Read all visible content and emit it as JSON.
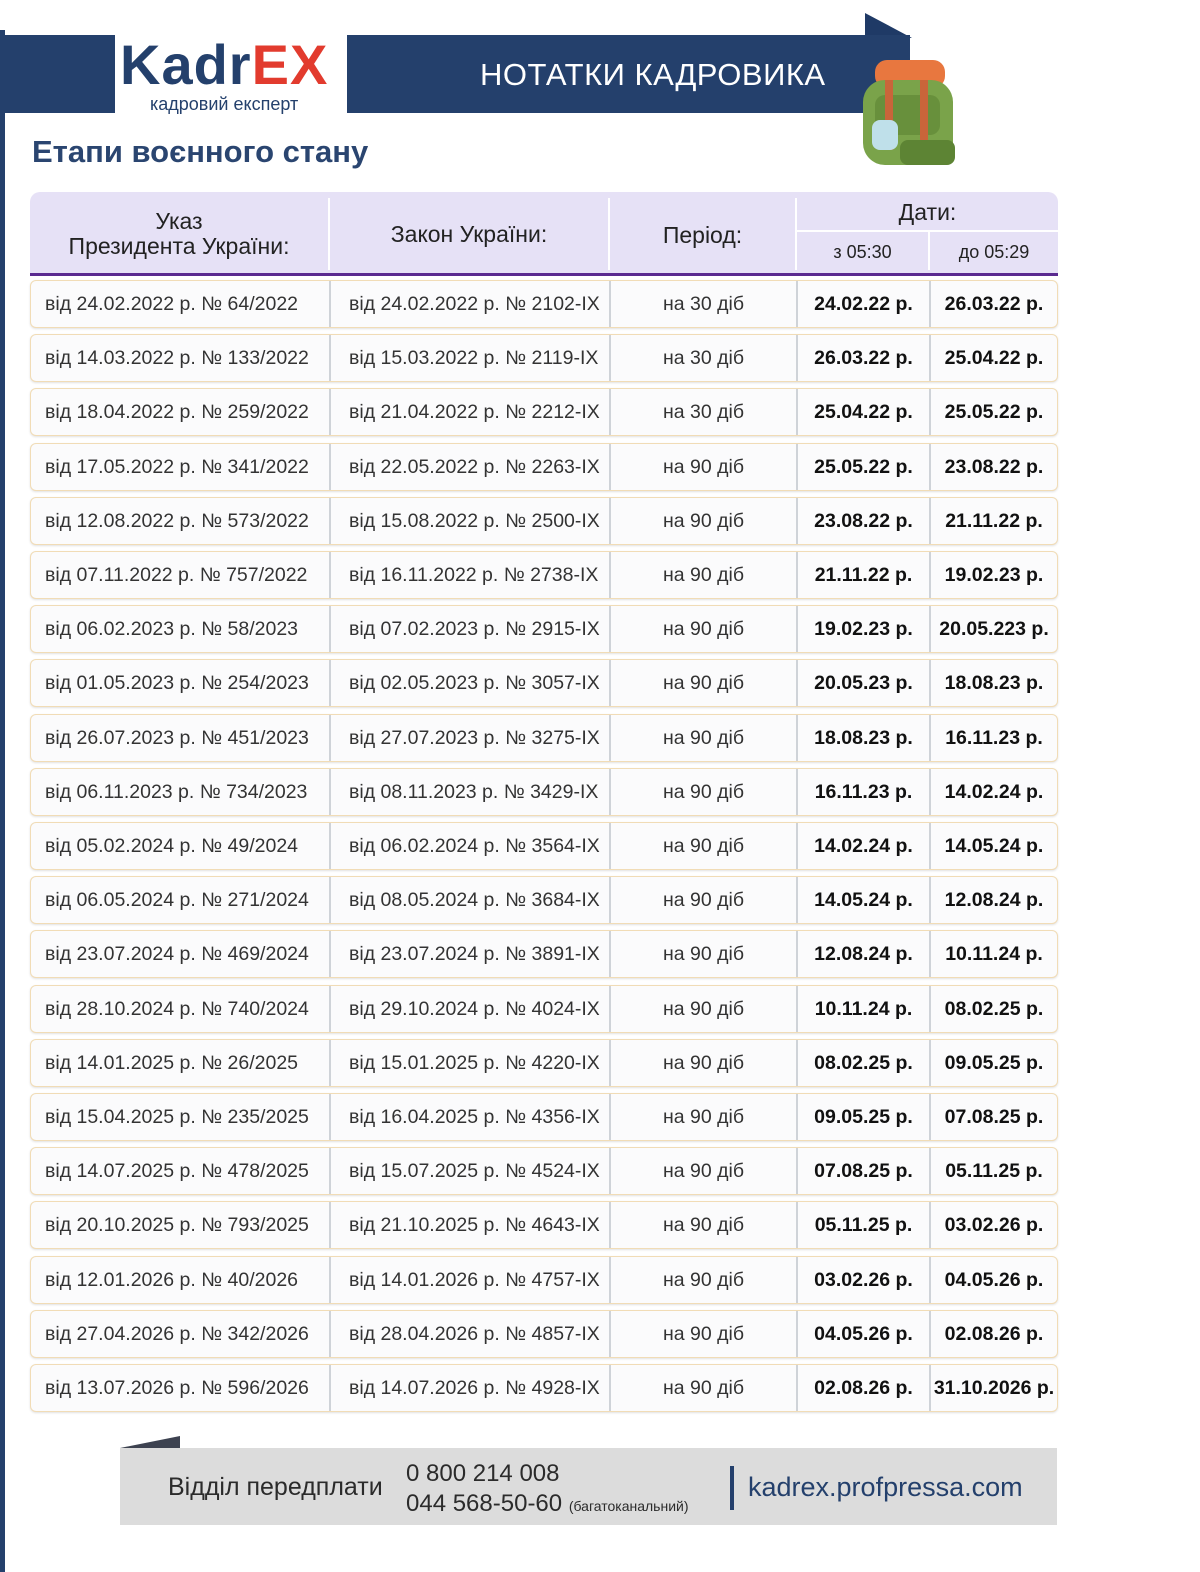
{
  "header": {
    "logo_main": "Kadr",
    "logo_accent": "EX",
    "logo_tagline": "кадровий експерт",
    "banner": "НОТАТКИ КАДРОВИКА"
  },
  "title": "Етапи воєнного стану",
  "table": {
    "head": {
      "decree_lines": [
        "Указ",
        "Президента України:"
      ],
      "law": "Закон України:",
      "period": "Період:",
      "dates": "Дати:",
      "from": "з 05:30",
      "to": "до 05:29"
    },
    "rows": [
      [
        "від 24.02.2022 р. № 64/2022",
        "від 24.02.2022 р. № 2102-IX",
        "на 30 діб",
        "24.02.22 р.",
        "26.03.22 р."
      ],
      [
        "від 14.03.2022 р. № 133/2022",
        "від 15.03.2022 р. № 2119-IX",
        "на 30 діб",
        "26.03.22 р.",
        "25.04.22 р."
      ],
      [
        "від 18.04.2022 р. № 259/2022",
        "від 21.04.2022 р. № 2212-IX",
        "на 30 діб",
        "25.04.22 р.",
        "25.05.22 р."
      ],
      [
        "від 17.05.2022 р. № 341/2022",
        "від 22.05.2022 р. № 2263-IX",
        "на 90 діб",
        "25.05.22 р.",
        "23.08.22 р."
      ],
      [
        "від 12.08.2022 р. № 573/2022",
        "від 15.08.2022 р. № 2500-IX",
        "на 90 діб",
        "23.08.22 р.",
        "21.11.22 р."
      ],
      [
        "від 07.11.2022 р. № 757/2022",
        "від 16.11.2022 р. № 2738-IX",
        "на 90 діб",
        "21.11.22 р.",
        "19.02.23 р."
      ],
      [
        "від 06.02.2023 р. № 58/2023",
        "від 07.02.2023 р. № 2915-IX",
        "на 90 діб",
        "19.02.23 р.",
        "20.05.223 р."
      ],
      [
        "від 01.05.2023 р. № 254/2023",
        "від 02.05.2023 р. № 3057-IX",
        "на 90 діб",
        "20.05.23 р.",
        "18.08.23 р."
      ],
      [
        "від 26.07.2023 р. № 451/2023",
        "від 27.07.2023 р. № 3275-IX",
        "на 90 діб",
        "18.08.23 р.",
        "16.11.23 р."
      ],
      [
        "від 06.11.2023 р. № 734/2023",
        "від 08.11.2023 р. № 3429-IX",
        "на 90 діб",
        "16.11.23 р.",
        "14.02.24 р."
      ],
      [
        "від 05.02.2024 р. № 49/2024",
        "від 06.02.2024 р. № 3564-IX",
        "на 90 діб",
        "14.02.24 р.",
        "14.05.24 р."
      ],
      [
        "від 06.05.2024 р. № 271/2024",
        "від 08.05.2024 р. № 3684-IX",
        "на 90 діб",
        "14.05.24 р.",
        "12.08.24 р."
      ],
      [
        "від 23.07.2024 р. № 469/2024",
        "від 23.07.2024 р. № 3891-IX",
        "на 90 діб",
        "12.08.24 р.",
        "10.11.24 р."
      ],
      [
        "від 28.10.2024 р. № 740/2024",
        "від 29.10.2024 р. № 4024-IX",
        "на 90 діб",
        "10.11.24 р.",
        "08.02.25 р."
      ],
      [
        "від 14.01.2025 р. № 26/2025",
        "від 15.01.2025 р. № 4220-IX",
        "на 90 діб",
        "08.02.25 р.",
        "09.05.25 р."
      ],
      [
        "від 15.04.2025 р. № 235/2025",
        "від 16.04.2025 р. № 4356-IX",
        "на 90 діб",
        "09.05.25 р.",
        "07.08.25 р."
      ],
      [
        "від 14.07.2025 р. № 478/2025",
        "від 15.07.2025 р. № 4524-IX",
        "на 90 діб",
        "07.08.25 р.",
        "05.11.25 р."
      ],
      [
        "від 20.10.2025 р. № 793/2025",
        "від 21.10.2025 р. № 4643-IX",
        "на 90 діб",
        "05.11.25 р.",
        "03.02.26 р."
      ],
      [
        "від 12.01.2026 р. № 40/2026",
        "від 14.01.2026 р. № 4757-IX",
        "на 90 діб",
        "03.02.26 р.",
        "04.05.26 р."
      ],
      [
        "від 27.04.2026 р. № 342/2026",
        "від 28.04.2026 р. № 4857-IX",
        "на 90 діб",
        "04.05.26 р.",
        "02.08.26 р."
      ],
      [
        "від 13.07.2026 р. № 596/2026",
        "від 14.07.2026 р. № 4928-IX",
        "на 90 діб",
        "02.08.26 р.",
        "31.10.2026 р."
      ]
    ]
  },
  "footer": {
    "department": "Відділ передплати",
    "phone_1": "0 800 214 008",
    "phone_2": "044 568-50-60",
    "phone_2_note": "(багатоканальний)",
    "website": "kadrex.profpressa.com"
  }
}
